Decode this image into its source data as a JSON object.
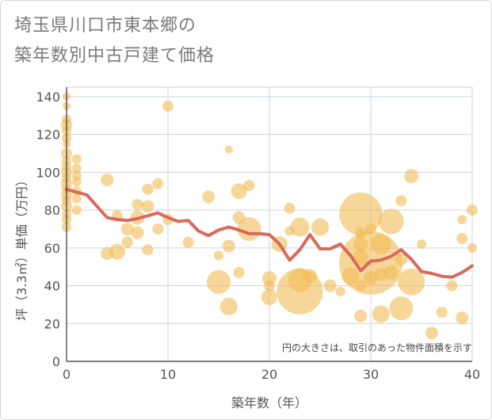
{
  "chart_data": {
    "type": "scatter",
    "title_line1": "埼玉県川口市東本郷の",
    "title_line2": "築年数別中古戸建て価格",
    "xlabel": "築年数（年）",
    "ylabel": "坪（3.3㎡）単価（万円）",
    "annotation": "円の大きさは、取引のあった物件面積を示す",
    "xlim": [
      0,
      40
    ],
    "ylim": [
      0,
      145
    ],
    "xticks": [
      0,
      10,
      20,
      30,
      40
    ],
    "yticks": [
      0,
      20,
      40,
      60,
      80,
      100,
      120,
      140
    ],
    "colors": {
      "bubble": "#f2bb55",
      "line": "#d9695a",
      "grid": "#c9d3e3"
    },
    "series": [
      {
        "name": "bubbles",
        "points": [
          {
            "x": 0,
            "y": 140,
            "s": 5
          },
          {
            "x": 0,
            "y": 135,
            "s": 5
          },
          {
            "x": 0,
            "y": 128,
            "s": 6
          },
          {
            "x": 0,
            "y": 125,
            "s": 7
          },
          {
            "x": 0,
            "y": 122,
            "s": 6
          },
          {
            "x": 0,
            "y": 118,
            "s": 6
          },
          {
            "x": 0,
            "y": 115,
            "s": 5
          },
          {
            "x": 0,
            "y": 110,
            "s": 7
          },
          {
            "x": 0,
            "y": 106,
            "s": 6
          },
          {
            "x": 0,
            "y": 103,
            "s": 6
          },
          {
            "x": 0,
            "y": 100,
            "s": 7
          },
          {
            "x": 0,
            "y": 97,
            "s": 6
          },
          {
            "x": 0,
            "y": 94,
            "s": 7
          },
          {
            "x": 0,
            "y": 91,
            "s": 6
          },
          {
            "x": 0,
            "y": 88,
            "s": 7
          },
          {
            "x": 0,
            "y": 85,
            "s": 6
          },
          {
            "x": 0,
            "y": 82,
            "s": 7
          },
          {
            "x": 0,
            "y": 78,
            "s": 6
          },
          {
            "x": 0,
            "y": 75,
            "s": 6
          },
          {
            "x": 0,
            "y": 71,
            "s": 6
          },
          {
            "x": 1,
            "y": 107,
            "s": 6
          },
          {
            "x": 1,
            "y": 102,
            "s": 6
          },
          {
            "x": 1,
            "y": 98,
            "s": 6
          },
          {
            "x": 1,
            "y": 95,
            "s": 6
          },
          {
            "x": 1,
            "y": 90,
            "s": 6
          },
          {
            "x": 1,
            "y": 86,
            "s": 6
          },
          {
            "x": 1,
            "y": 80,
            "s": 6
          },
          {
            "x": 4,
            "y": 96,
            "s": 8
          },
          {
            "x": 4,
            "y": 57,
            "s": 8
          },
          {
            "x": 5,
            "y": 77,
            "s": 7
          },
          {
            "x": 5,
            "y": 58,
            "s": 10
          },
          {
            "x": 6,
            "y": 70,
            "s": 8
          },
          {
            "x": 6,
            "y": 63,
            "s": 7
          },
          {
            "x": 7,
            "y": 83,
            "s": 7
          },
          {
            "x": 7,
            "y": 76,
            "s": 9
          },
          {
            "x": 7,
            "y": 68,
            "s": 8
          },
          {
            "x": 8,
            "y": 91,
            "s": 7
          },
          {
            "x": 8,
            "y": 82,
            "s": 8
          },
          {
            "x": 8,
            "y": 59,
            "s": 7
          },
          {
            "x": 9,
            "y": 94,
            "s": 7
          },
          {
            "x": 9,
            "y": 70,
            "s": 7
          },
          {
            "x": 10,
            "y": 135,
            "s": 7
          },
          {
            "x": 10,
            "y": 75,
            "s": 7
          },
          {
            "x": 12,
            "y": 63,
            "s": 7
          },
          {
            "x": 14,
            "y": 87,
            "s": 8
          },
          {
            "x": 15,
            "y": 56,
            "s": 6
          },
          {
            "x": 16,
            "y": 112,
            "s": 5
          },
          {
            "x": 16,
            "y": 61,
            "s": 8
          },
          {
            "x": 15,
            "y": 42,
            "s": 15
          },
          {
            "x": 16,
            "y": 29,
            "s": 11
          },
          {
            "x": 17,
            "y": 90,
            "s": 10
          },
          {
            "x": 17,
            "y": 76,
            "s": 8
          },
          {
            "x": 17,
            "y": 47,
            "s": 7
          },
          {
            "x": 18,
            "y": 93,
            "s": 7
          },
          {
            "x": 18,
            "y": 70,
            "s": 15
          },
          {
            "x": 20,
            "y": 44,
            "s": 9
          },
          {
            "x": 20,
            "y": 40,
            "s": 7
          },
          {
            "x": 20,
            "y": 34,
            "s": 10
          },
          {
            "x": 21,
            "y": 62,
            "s": 10
          },
          {
            "x": 22,
            "y": 81,
            "s": 7
          },
          {
            "x": 22,
            "y": 69,
            "s": 6
          },
          {
            "x": 23,
            "y": 71,
            "s": 12
          },
          {
            "x": 23,
            "y": 43,
            "s": 15
          },
          {
            "x": 23,
            "y": 37,
            "s": 29
          },
          {
            "x": 24,
            "y": 45,
            "s": 9
          },
          {
            "x": 25,
            "y": 71,
            "s": 11
          },
          {
            "x": 26,
            "y": 40,
            "s": 8
          },
          {
            "x": 27,
            "y": 37,
            "s": 6
          },
          {
            "x": 28,
            "y": 45,
            "s": 11
          },
          {
            "x": 29,
            "y": 78,
            "s": 27
          },
          {
            "x": 29,
            "y": 68,
            "s": 7
          },
          {
            "x": 29,
            "y": 62,
            "s": 9
          },
          {
            "x": 29,
            "y": 55,
            "s": 10
          },
          {
            "x": 29,
            "y": 40,
            "s": 7
          },
          {
            "x": 29,
            "y": 24,
            "s": 8
          },
          {
            "x": 30,
            "y": 70,
            "s": 7
          },
          {
            "x": 30,
            "y": 52,
            "s": 40
          },
          {
            "x": 30,
            "y": 44,
            "s": 9
          },
          {
            "x": 31,
            "y": 62,
            "s": 13
          },
          {
            "x": 31,
            "y": 46,
            "s": 8
          },
          {
            "x": 31,
            "y": 25,
            "s": 11
          },
          {
            "x": 32,
            "y": 74,
            "s": 16
          },
          {
            "x": 32,
            "y": 47,
            "s": 9
          },
          {
            "x": 33,
            "y": 85,
            "s": 7
          },
          {
            "x": 33,
            "y": 28,
            "s": 15
          },
          {
            "x": 33,
            "y": 54,
            "s": 8
          },
          {
            "x": 34,
            "y": 98,
            "s": 9
          },
          {
            "x": 34,
            "y": 42,
            "s": 17
          },
          {
            "x": 35,
            "y": 62,
            "s": 6
          },
          {
            "x": 36,
            "y": 15,
            "s": 8
          },
          {
            "x": 37,
            "y": 26,
            "s": 7
          },
          {
            "x": 38,
            "y": 40,
            "s": 7
          },
          {
            "x": 39,
            "y": 75,
            "s": 6
          },
          {
            "x": 39,
            "y": 65,
            "s": 7
          },
          {
            "x": 39,
            "y": 23,
            "s": 8
          },
          {
            "x": 40,
            "y": 80,
            "s": 7
          },
          {
            "x": 40,
            "y": 60,
            "s": 6
          }
        ]
      },
      {
        "name": "trend",
        "x": [
          0,
          1,
          2,
          3,
          4,
          5,
          6,
          7,
          8,
          9,
          10,
          11,
          12,
          13,
          14,
          15,
          16,
          17,
          18,
          19,
          20,
          21,
          22,
          23,
          24,
          25,
          26,
          27,
          28,
          29,
          30,
          31,
          32,
          33,
          34,
          35,
          36,
          37,
          38,
          39,
          40
        ],
        "y": [
          91,
          89.5,
          88,
          82,
          76,
          75,
          74.5,
          75.5,
          77,
          78.5,
          76,
          74,
          74.5,
          69,
          66.5,
          69.5,
          71,
          69.5,
          67.5,
          67.5,
          67,
          62,
          53.5,
          59,
          67,
          59.5,
          59.5,
          62,
          56,
          48,
          53,
          53.5,
          55.5,
          59,
          54,
          47.5,
          46.5,
          45,
          44.5,
          47,
          50.5
        ]
      }
    ]
  }
}
